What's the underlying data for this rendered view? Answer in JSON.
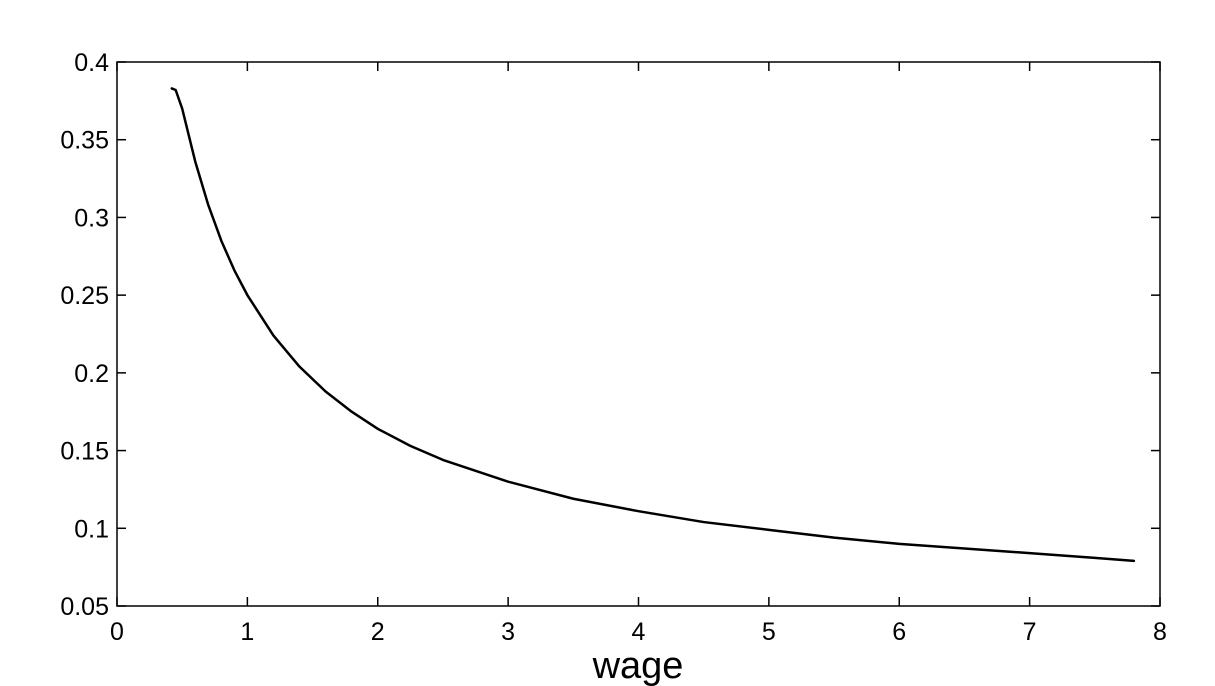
{
  "chart_data": {
    "type": "line",
    "title": "",
    "xlabel": "wage",
    "ylabel": "",
    "xlim": [
      0,
      8
    ],
    "ylim": [
      0.05,
      0.4
    ],
    "xticks": [
      "0",
      "1",
      "2",
      "3",
      "4",
      "5",
      "6",
      "7",
      "8"
    ],
    "yticks": [
      "0.05",
      "0.1",
      "0.15",
      "0.2",
      "0.25",
      "0.3",
      "0.35",
      "0.4"
    ],
    "grid": false,
    "legend": "none",
    "line_color": "#000000",
    "series": [
      {
        "x": [
          0.42,
          0.45,
          0.5,
          0.6,
          0.7,
          0.8,
          0.9,
          1.0,
          1.2,
          1.4,
          1.6,
          1.8,
          2.0,
          2.25,
          2.5,
          3.0,
          3.5,
          4.0,
          4.5,
          5.0,
          5.5,
          6.0,
          6.5,
          7.0,
          7.5,
          7.8
        ],
        "y": [
          0.383,
          0.382,
          0.37,
          0.336,
          0.308,
          0.285,
          0.266,
          0.25,
          0.224,
          0.204,
          0.188,
          0.175,
          0.164,
          0.153,
          0.144,
          0.13,
          0.119,
          0.111,
          0.104,
          0.099,
          0.094,
          0.09,
          0.087,
          0.084,
          0.081,
          0.079
        ]
      }
    ]
  }
}
